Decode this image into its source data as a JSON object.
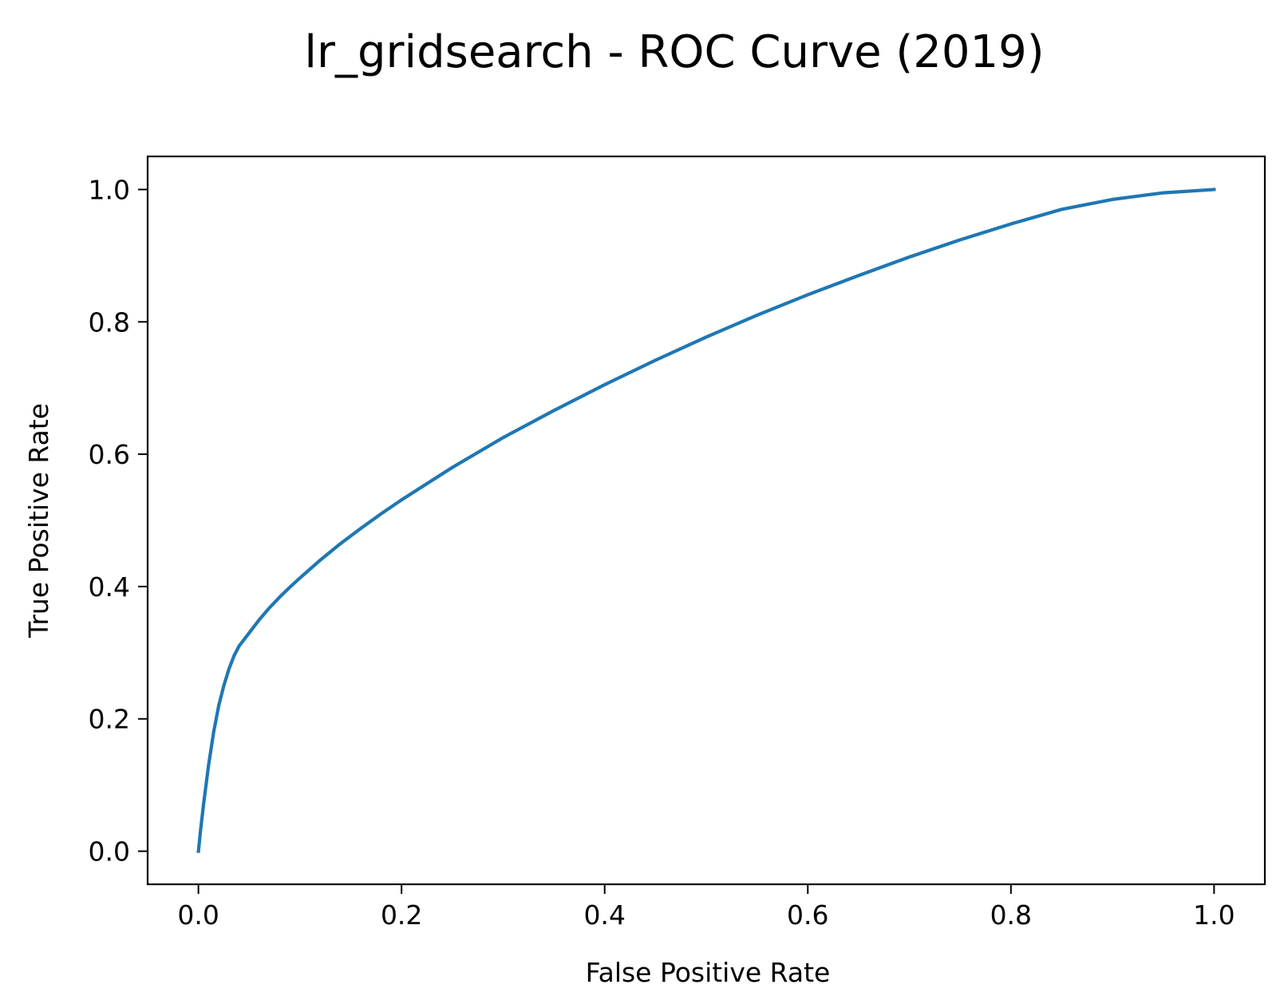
{
  "chart_data": {
    "type": "line",
    "title": "lr_gridsearch - ROC Curve (2019)",
    "xlabel": "False Positive Rate",
    "ylabel": "True Positive Rate",
    "xlim": [
      -0.05,
      1.05
    ],
    "ylim": [
      -0.05,
      1.05
    ],
    "xticks": [
      "0.0",
      "0.2",
      "0.4",
      "0.6",
      "0.8",
      "1.0"
    ],
    "yticks": [
      "0.0",
      "0.2",
      "0.4",
      "0.6",
      "0.8",
      "1.0"
    ],
    "grid": false,
    "series": [
      {
        "color": "#1f77b4",
        "x": [
          0.0,
          0.002,
          0.005,
          0.01,
          0.015,
          0.02,
          0.025,
          0.03,
          0.035,
          0.04,
          0.045,
          0.05,
          0.06,
          0.07,
          0.08,
          0.09,
          0.1,
          0.12,
          0.14,
          0.16,
          0.18,
          0.2,
          0.25,
          0.3,
          0.35,
          0.4,
          0.45,
          0.5,
          0.55,
          0.6,
          0.65,
          0.7,
          0.75,
          0.8,
          0.85,
          0.9,
          0.95,
          1.0
        ],
        "y": [
          0.0,
          0.03,
          0.07,
          0.13,
          0.18,
          0.22,
          0.25,
          0.275,
          0.295,
          0.31,
          0.32,
          0.33,
          0.35,
          0.368,
          0.384,
          0.399,
          0.413,
          0.44,
          0.465,
          0.488,
          0.51,
          0.531,
          0.58,
          0.625,
          0.666,
          0.705,
          0.742,
          0.777,
          0.81,
          0.841,
          0.87,
          0.898,
          0.924,
          0.948,
          0.97,
          0.985,
          0.995,
          1.0
        ]
      }
    ]
  }
}
